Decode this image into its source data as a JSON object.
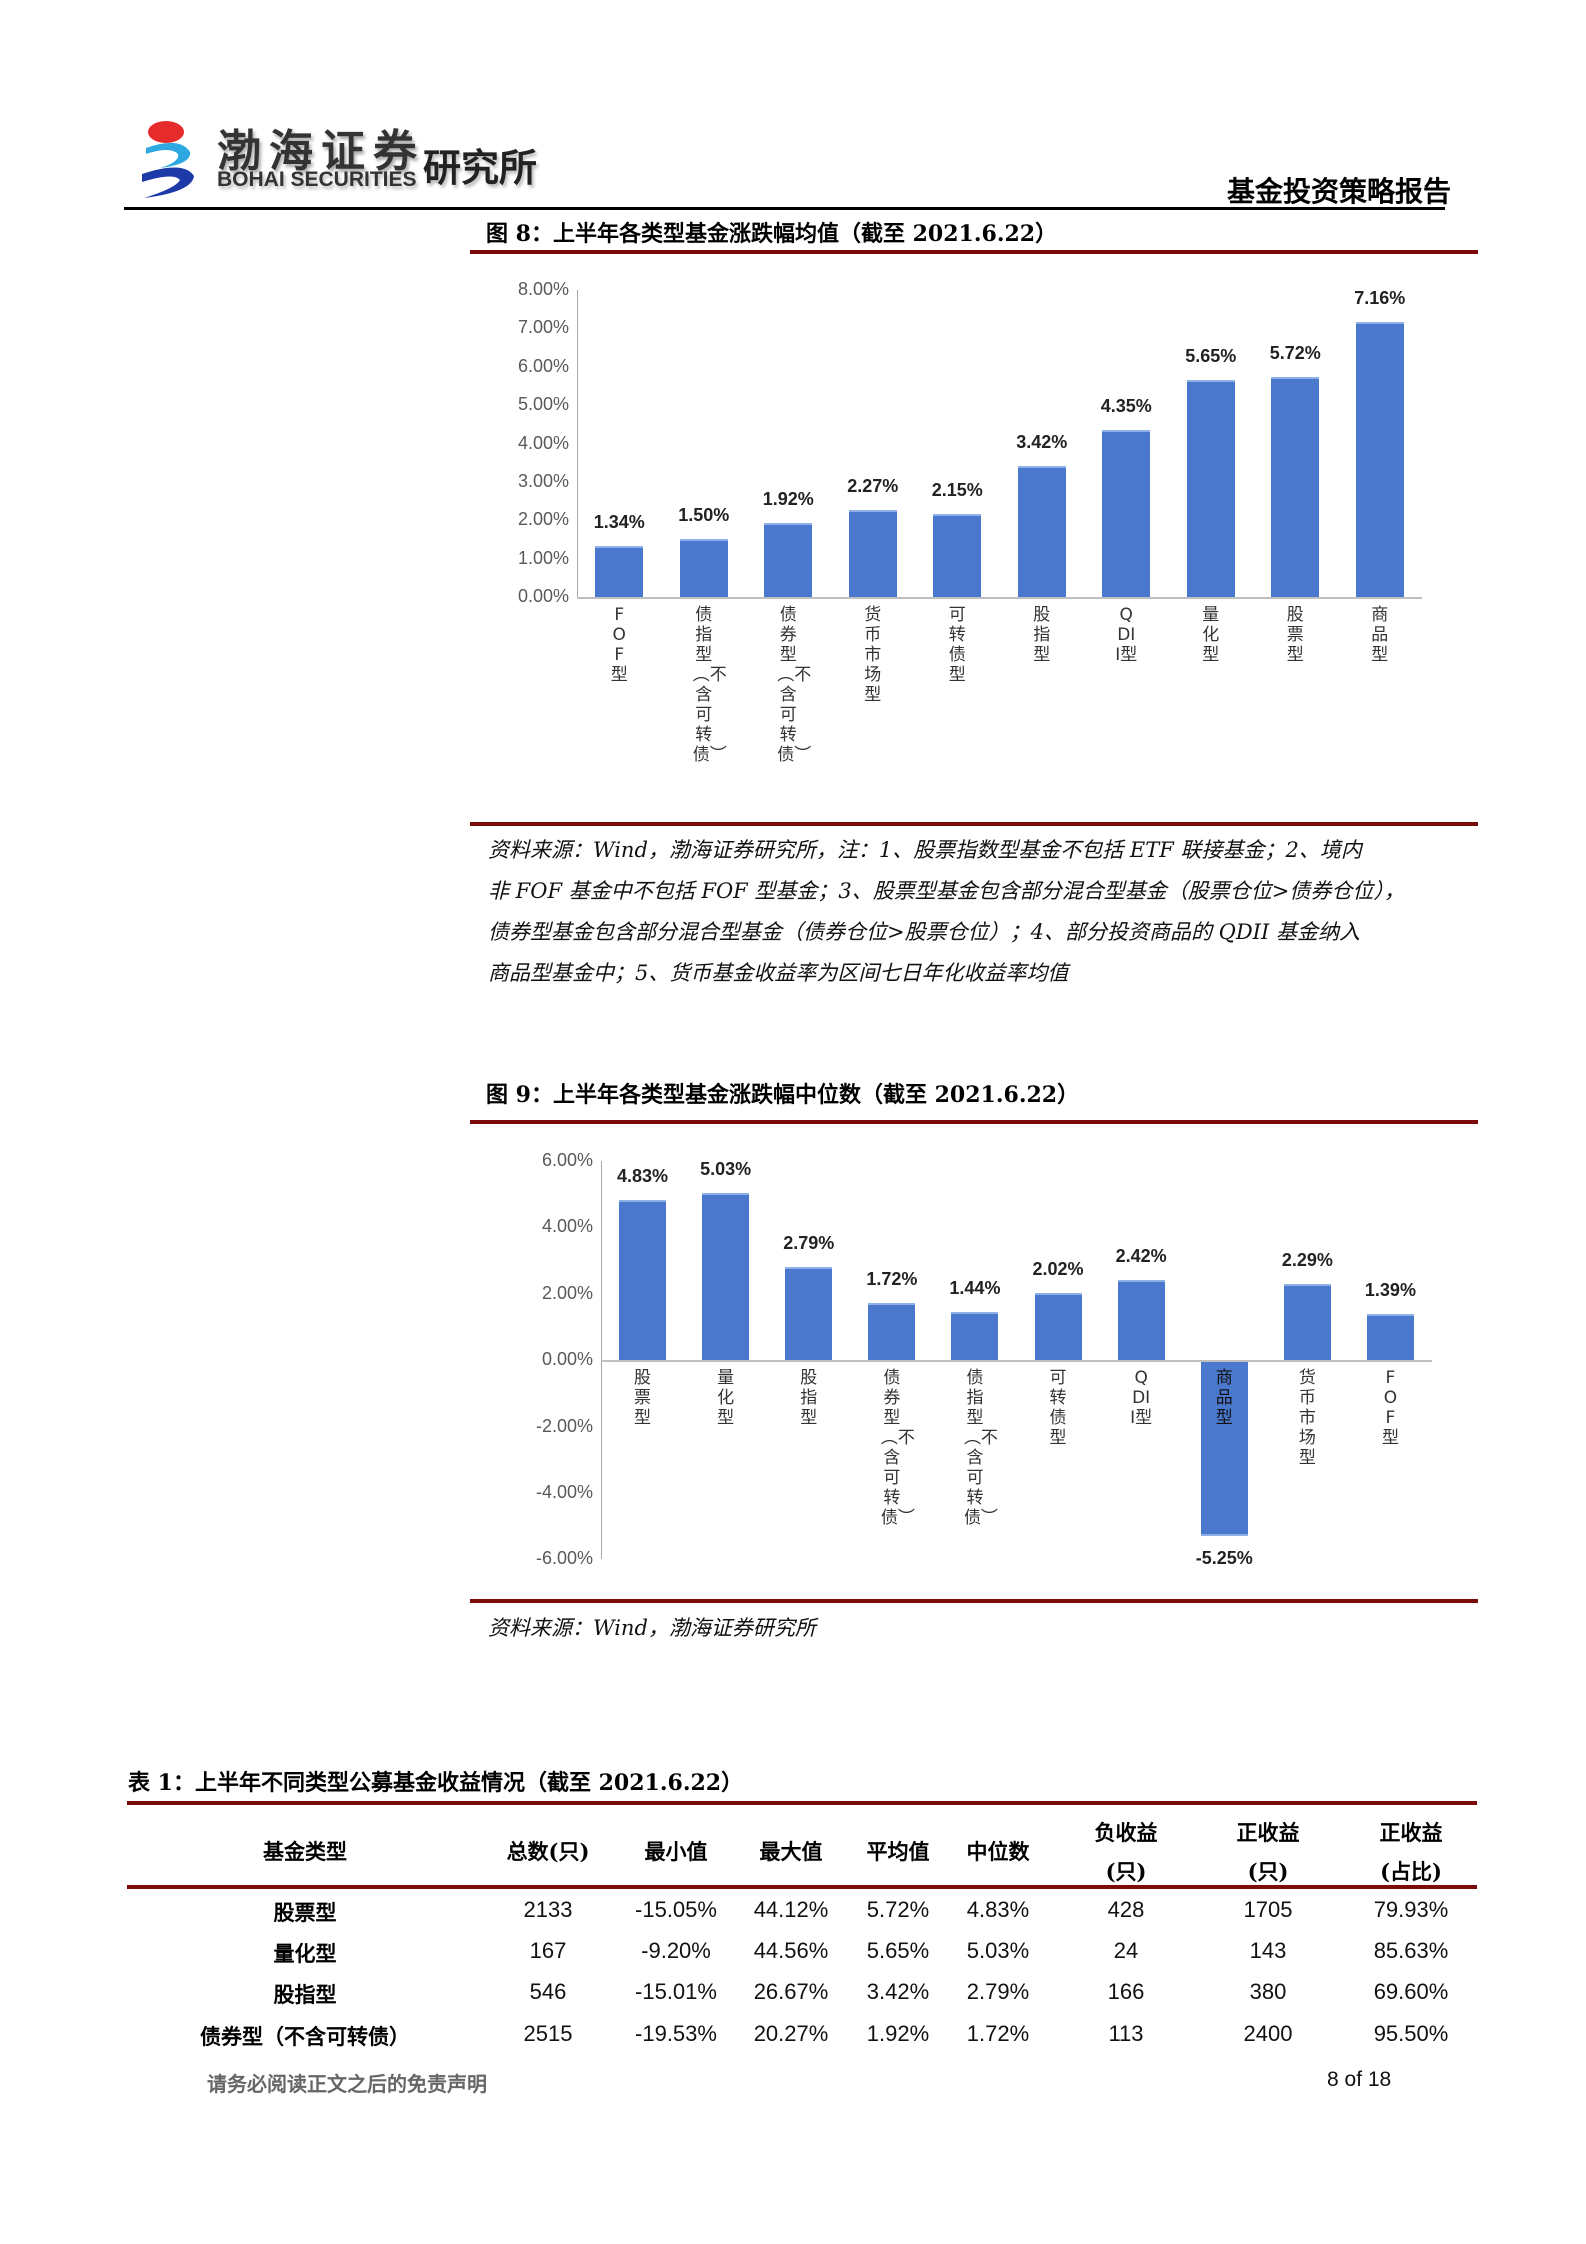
{
  "header": {
    "logo_cn": "渤海证券",
    "logo_en": "BOHAI SECURITIES",
    "institute": "研究所",
    "report_type": "基金投资策略报告"
  },
  "figure8": {
    "title": "图 8：上半年各类型基金涨跌幅均值（截至 2021.6.22）",
    "source": "资料来源：Wind，渤海证券研究所，注：1、股票指数型基金不包括 ETF 联接基金；2、境内非 FOF 基金中不包括 FOF 型基金；3、股票型基金包含部分混合型基金（股票仓位>债券仓位），债券型基金包含部分混合型基金（债券仓位>股票仓位）；4、部分投资商品的 QDII 基金纳入商品型基金中；5、货币基金收益率为区间七日年化收益率均值",
    "source_lines": [
      "资料来源：Wind，渤海证券研究所，注：1、股票指数型基金不包括 ETF 联接基金；2、境内",
      "非 FOF 基金中不包括 FOF 型基金；3、股票型基金包含部分混合型基金（股票仓位>债券仓位），",
      "债券型基金包含部分混合型基金（债券仓位>股票仓位）；4、部分投资商品的 QDII 基金纳入",
      "商品型基金中；5、货币基金收益率为区间七日年化收益率均值"
    ]
  },
  "figure9": {
    "title": "图 9：上半年各类型基金涨跌幅中位数（截至 2021.6.22）",
    "source": "资料来源：Wind，渤海证券研究所"
  },
  "chart_data": [
    {
      "type": "bar",
      "title": "上半年各类型基金涨跌幅均值（截至 2021.6.22）",
      "categories": [
        "FOF型",
        "债指型（不含可转债）",
        "债券型（不含可转债）",
        "货币市场型",
        "可转债型",
        "股指型",
        "QDII型",
        "量化型",
        "股票型",
        "商品型"
      ],
      "values": [
        1.34,
        1.5,
        1.92,
        2.27,
        2.15,
        3.42,
        4.35,
        5.65,
        5.72,
        7.16
      ],
      "value_labels": [
        "1.34%",
        "1.50%",
        "1.92%",
        "2.27%",
        "2.15%",
        "3.42%",
        "4.35%",
        "5.65%",
        "5.72%",
        "7.16%"
      ],
      "yticks": [
        "8.00%",
        "7.00%",
        "6.00%",
        "5.00%",
        "4.00%",
        "3.00%",
        "2.00%",
        "1.00%",
        "0.00%"
      ],
      "ylim": [
        0,
        8
      ],
      "xlabel": "",
      "ylabel": "",
      "unit": "%",
      "grid": false,
      "legend": "none",
      "color": "#4a78cc"
    },
    {
      "type": "bar",
      "title": "上半年各类型基金涨跌幅中位数（截至 2021.6.22）",
      "categories": [
        "股票型",
        "量化型",
        "股指型",
        "债券型（不含可转债）",
        "债指型（不含可转债）",
        "可转债型",
        "QDII型",
        "商品型",
        "货币市场型",
        "FOF型"
      ],
      "values": [
        4.83,
        5.03,
        2.79,
        1.72,
        1.44,
        2.02,
        2.42,
        -5.25,
        2.29,
        1.39
      ],
      "value_labels": [
        "4.83%",
        "5.03%",
        "2.79%",
        "1.72%",
        "1.44%",
        "2.02%",
        "2.42%",
        "-5.25%",
        "2.29%",
        "1.39%"
      ],
      "yticks": [
        "6.00%",
        "4.00%",
        "2.00%",
        "0.00%",
        "-2.00%",
        "-4.00%",
        "-6.00%"
      ],
      "ylim": [
        -6,
        6
      ],
      "xlabel": "",
      "ylabel": "",
      "unit": "%",
      "grid": false,
      "legend": "none",
      "color": "#4a78cc"
    }
  ],
  "table1": {
    "title": "表 1：上半年不同类型公募基金收益情况（截至 2021.6.22）",
    "headers": [
      {
        "l1": "基金类型",
        "l2": ""
      },
      {
        "l1": "总数(只)",
        "l2": ""
      },
      {
        "l1": "最小值",
        "l2": ""
      },
      {
        "l1": "最大值",
        "l2": ""
      },
      {
        "l1": "平均值",
        "l2": ""
      },
      {
        "l1": "中位数",
        "l2": ""
      },
      {
        "l1": "负收益",
        "l2": "(只)"
      },
      {
        "l1": "正收益",
        "l2": "(只)"
      },
      {
        "l1": "正收益",
        "l2": "(占比)"
      }
    ],
    "rows": [
      [
        "股票型",
        "2133",
        "-15.05%",
        "44.12%",
        "5.72%",
        "4.83%",
        "428",
        "1705",
        "79.93%"
      ],
      [
        "量化型",
        "167",
        "-9.20%",
        "44.56%",
        "5.65%",
        "5.03%",
        "24",
        "143",
        "85.63%"
      ],
      [
        "股指型",
        "546",
        "-15.01%",
        "26.67%",
        "3.42%",
        "2.79%",
        "166",
        "380",
        "69.60%"
      ],
      [
        "债券型（不含可转债）",
        "2515",
        "-19.53%",
        "20.27%",
        "1.92%",
        "1.72%",
        "113",
        "2400",
        "95.50%"
      ]
    ]
  },
  "footer": {
    "disclaimer": "请务必阅读正文之后的免责声明",
    "page": "8 of 18"
  }
}
